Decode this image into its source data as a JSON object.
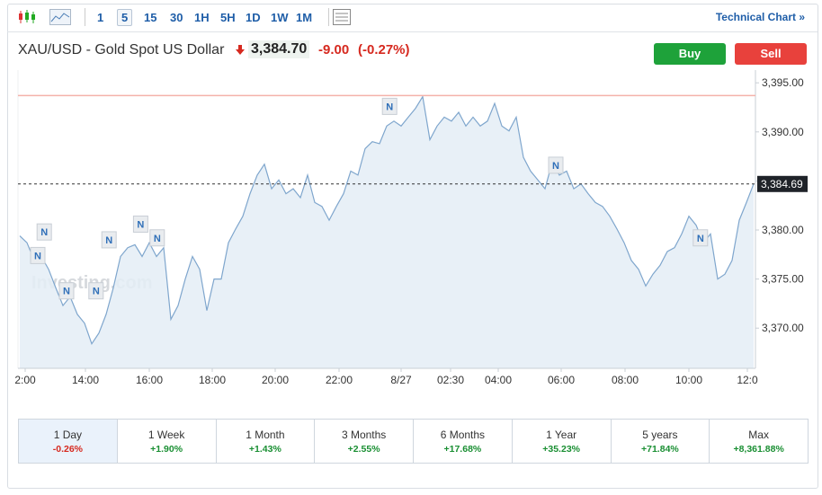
{
  "toolbar": {
    "intervals": [
      "1",
      "5",
      "15",
      "30",
      "1H",
      "5H",
      "1D",
      "1W",
      "1M"
    ],
    "selected": "5",
    "technical_chart": "Technical Chart »"
  },
  "header": {
    "title": "XAU/USD - Gold Spot US Dollar",
    "price": "3,384.70",
    "change": "-9.00",
    "change_pct": "(-0.27%)"
  },
  "actions": {
    "buy": "Buy",
    "sell": "Sell"
  },
  "chart_data": {
    "type": "area",
    "watermark": "Investing.com",
    "series": [
      {
        "color": "#7fa6cd",
        "fill": "#e4edf6",
        "values": [
          3379.4,
          3378.7,
          3376.9,
          3377.3,
          3376.0,
          3374.1,
          3372.3,
          3373.2,
          3371.4,
          3370.5,
          3368.4,
          3369.5,
          3371.4,
          3374.1,
          3377.3,
          3378.2,
          3378.5,
          3377.3,
          3378.7,
          3377.3,
          3378.2,
          3370.9,
          3372.3,
          3375.0,
          3377.3,
          3376.0,
          3371.8,
          3375.0,
          3375.0,
          3378.7,
          3380.1,
          3381.4,
          3383.7,
          3385.6,
          3386.7,
          3384.2,
          3385.1,
          3383.7,
          3384.2,
          3383.3,
          3385.6,
          3382.8,
          3382.4,
          3381.0,
          3382.4,
          3383.7,
          3386.0,
          3385.6,
          3388.3,
          3389.0,
          3388.8,
          3390.6,
          3391.1,
          3390.6,
          3391.5,
          3392.4,
          3393.6,
          3389.2,
          3390.6,
          3391.5,
          3391.1,
          3392.0,
          3390.6,
          3391.5,
          3390.6,
          3391.1,
          3392.9,
          3390.6,
          3390.1,
          3391.5,
          3387.4,
          3386.0,
          3385.1,
          3384.2,
          3386.9,
          3385.6,
          3386.0,
          3384.2,
          3384.7,
          3383.7,
          3382.8,
          3382.4,
          3381.4,
          3380.1,
          3378.7,
          3376.9,
          3376.0,
          3374.3,
          3375.5,
          3376.4,
          3377.8,
          3378.2,
          3379.6,
          3381.4,
          3380.5,
          3378.7,
          3379.6,
          3375.0,
          3375.5,
          3376.9,
          3381.0,
          3382.8,
          3384.7
        ]
      }
    ],
    "xlim": [
      -0.25,
      102.25
    ],
    "xticks": [
      {
        "value": 0.75,
        "label": "2:00"
      },
      {
        "value": 9.125,
        "label": "14:00"
      },
      {
        "value": 18,
        "label": "16:00"
      },
      {
        "value": 26.75,
        "label": "18:00"
      },
      {
        "value": 35.5,
        "label": "20:00"
      },
      {
        "value": 44.375,
        "label": "22:00"
      },
      {
        "value": 53,
        "label": "8/27"
      },
      {
        "value": 59.875,
        "label": "02:30"
      },
      {
        "value": 66.5,
        "label": "04:00"
      },
      {
        "value": 75.25,
        "label": "06:00"
      },
      {
        "value": 84.125,
        "label": "08:00"
      },
      {
        "value": 93,
        "label": "10:00"
      },
      {
        "value": 101.125,
        "label": "12:0"
      }
    ],
    "ylim": [
      3365.9,
      3396.3
    ],
    "yticks": [
      {
        "value": 3370,
        "label": "3,370.00"
      },
      {
        "value": 3375,
        "label": "3,375.00"
      },
      {
        "value": 3380,
        "label": "3,380.00"
      },
      {
        "value": 3385,
        "label": "3,385.00"
      },
      {
        "value": 3390,
        "label": "3,390.00"
      },
      {
        "value": 3395,
        "label": "3,395.00"
      }
    ],
    "prev_close": {
      "value": 3393.7,
      "color": "#f4b2aa"
    },
    "last": {
      "value": 3384.69,
      "label": "3,384.69"
    },
    "annotations": [
      {
        "x": 3.4,
        "y": 3379.8,
        "label": "N"
      },
      {
        "x": 2.5,
        "y": 3377.4,
        "label": "N"
      },
      {
        "x": 6.5,
        "y": 3373.8,
        "label": "N"
      },
      {
        "x": 10.6,
        "y": 3373.8,
        "label": "N"
      },
      {
        "x": 12.4,
        "y": 3379.0,
        "label": "N"
      },
      {
        "x": 16.8,
        "y": 3380.6,
        "label": "N"
      },
      {
        "x": 19.1,
        "y": 3379.2,
        "label": "N"
      },
      {
        "x": 51.4,
        "y": 3392.6,
        "label": "N"
      },
      {
        "x": 74.5,
        "y": 3386.6,
        "label": "N"
      },
      {
        "x": 94.6,
        "y": 3379.2,
        "label": "N"
      }
    ]
  },
  "periods": [
    {
      "label": "1 Day",
      "change": "-0.26%"
    },
    {
      "label": "1 Week",
      "change": "+1.90%"
    },
    {
      "label": "1 Month",
      "change": "+1.43%"
    },
    {
      "label": "3 Months",
      "change": "+2.55%"
    },
    {
      "label": "6 Months",
      "change": "+17.68%"
    },
    {
      "label": "1 Year",
      "change": "+35.23%"
    },
    {
      "label": "5 years",
      "change": "+71.84%"
    },
    {
      "label": "Max",
      "change": "+8,361.88%"
    }
  ]
}
